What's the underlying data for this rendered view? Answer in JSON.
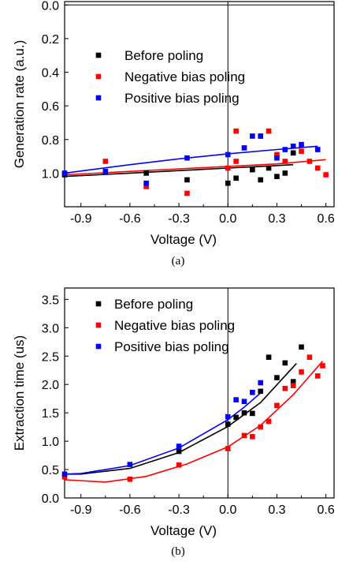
{
  "chart_data": [
    {
      "type": "scatter",
      "panel_label": "(a)",
      "xlabel": "Voltage (V)",
      "ylabel": "Generation rate (a.u.)",
      "xlim": [
        -1.0,
        0.65
      ],
      "ylim": [
        1.2,
        -0.02
      ],
      "y_axis_inverted": true,
      "x_ticks": [
        "-0.9",
        "-0.6",
        "-0.3",
        "0.0",
        "0.3",
        "0.6"
      ],
      "x_tick_values": [
        -0.9,
        -0.6,
        -0.3,
        0.0,
        0.3,
        0.6
      ],
      "y_ticks": [
        "0.0",
        "0.2",
        "0.4",
        "0.6",
        "0.8",
        "1.0"
      ],
      "y_tick_values": [
        0.0,
        0.2,
        0.4,
        0.6,
        0.8,
        1.0
      ],
      "grid": false,
      "legend_position": "top-center",
      "reference_lines": {
        "x": 0.0,
        "y": 0.0
      },
      "series": [
        {
          "name": "Before poling",
          "color": "#000000",
          "x": [
            -1.0,
            -0.5,
            -0.25,
            0.0,
            0.05,
            0.15,
            0.2,
            0.25,
            0.3,
            0.35,
            0.4
          ],
          "y": [
            1.01,
            1.0,
            1.04,
            1.06,
            1.03,
            0.98,
            1.04,
            0.97,
            1.02,
            1.0,
            0.88
          ],
          "fit": {
            "x": [
              -1.0,
              -0.6,
              -0.3,
              0.0,
              0.2,
              0.4
            ],
            "y": [
              1.02,
              1.0,
              0.985,
              0.97,
              0.96,
              0.95
            ]
          }
        },
        {
          "name": "Negative bias poling",
          "color": "#ff0000",
          "x": [
            -0.75,
            -0.5,
            -0.25,
            0.0,
            0.05,
            0.05,
            0.2,
            0.25,
            0.3,
            0.35,
            0.45,
            0.5,
            0.55,
            0.6
          ],
          "y": [
            0.93,
            1.08,
            1.12,
            0.97,
            0.75,
            0.93,
            0.78,
            0.75,
            0.89,
            0.93,
            0.87,
            0.93,
            0.97,
            1.01
          ],
          "fit": {
            "x": [
              -1.0,
              -0.6,
              -0.3,
              0.0,
              0.3,
              0.6
            ],
            "y": [
              1.01,
              0.99,
              0.975,
              0.96,
              0.945,
              0.92
            ]
          }
        },
        {
          "name": "Positive bias poling",
          "color": "#0000ff",
          "x": [
            -1.0,
            -0.75,
            -0.5,
            -0.25,
            0.0,
            0.1,
            0.15,
            0.2,
            0.3,
            0.35,
            0.4,
            0.45,
            0.55
          ],
          "y": [
            1.0,
            0.99,
            1.06,
            0.91,
            0.89,
            0.85,
            0.78,
            0.78,
            0.91,
            0.86,
            0.84,
            0.83,
            0.86
          ],
          "fit": {
            "x": [
              -1.0,
              -0.6,
              -0.3,
              0.0,
              0.3,
              0.55
            ],
            "y": [
              1.0,
              0.95,
              0.915,
              0.885,
              0.86,
              0.84
            ]
          }
        }
      ]
    },
    {
      "type": "scatter",
      "panel_label": "(b)",
      "xlabel": "Voltage (V)",
      "ylabel": "Extraction time (us)",
      "xlim": [
        -1.0,
        0.65
      ],
      "ylim": [
        0.0,
        3.7
      ],
      "x_ticks": [
        "-0.9",
        "-0.6",
        "-0.3",
        "0.0",
        "0.3",
        "0.6"
      ],
      "x_tick_values": [
        -0.9,
        -0.6,
        -0.3,
        0.0,
        0.3,
        0.6
      ],
      "y_ticks": [
        "0.0",
        "0.5",
        "1.0",
        "1.5",
        "2.0",
        "2.5",
        "3.0",
        "3.5"
      ],
      "y_tick_values": [
        0.0,
        0.5,
        1.0,
        1.5,
        2.0,
        2.5,
        3.0,
        3.5
      ],
      "grid": false,
      "legend_position": "top-center",
      "reference_lines": {
        "x": 0.0
      },
      "series": [
        {
          "name": "Before poling",
          "color": "#000000",
          "x": [
            -0.3,
            0.0,
            0.05,
            0.1,
            0.15,
            0.2,
            0.25,
            0.3,
            0.35,
            0.4,
            0.45
          ],
          "y": [
            0.82,
            1.3,
            1.42,
            1.5,
            1.49,
            1.88,
            2.48,
            2.12,
            2.38,
            2.05,
            2.66
          ],
          "fit": {
            "x": [
              -1.0,
              -0.9,
              -0.6,
              -0.3,
              0.0,
              0.2,
              0.42
            ],
            "y": [
              0.42,
              0.42,
              0.52,
              0.8,
              1.26,
              1.68,
              2.37
            ]
          }
        },
        {
          "name": "Negative bias poling",
          "color": "#ff0000",
          "x": [
            -1.0,
            -0.6,
            -0.3,
            0.0,
            0.1,
            0.15,
            0.2,
            0.25,
            0.3,
            0.35,
            0.4,
            0.45,
            0.5,
            0.55,
            0.58
          ],
          "y": [
            0.37,
            0.33,
            0.58,
            0.87,
            1.1,
            1.08,
            1.25,
            1.35,
            1.63,
            1.93,
            1.98,
            2.22,
            2.48,
            2.15,
            2.33
          ],
          "fit": {
            "x": [
              -1.0,
              -0.75,
              -0.5,
              -0.25,
              0.0,
              0.2,
              0.4,
              0.58
            ],
            "y": [
              0.32,
              0.28,
              0.38,
              0.6,
              0.9,
              1.28,
              1.82,
              2.41
            ]
          }
        },
        {
          "name": "Positive bias poling",
          "color": "#0000ff",
          "x": [
            -1.0,
            -0.6,
            -0.3,
            0.0,
            0.05,
            0.1,
            0.15,
            0.2
          ],
          "y": [
            0.42,
            0.59,
            0.91,
            1.43,
            1.73,
            1.7,
            1.86,
            2.03
          ],
          "fit": {
            "x": [
              -1.0,
              -0.9,
              -0.6,
              -0.3,
              0.0,
              0.1,
              0.2
            ],
            "y": [
              0.42,
              0.43,
              0.57,
              0.88,
              1.38,
              1.6,
              1.85
            ]
          }
        }
      ]
    }
  ]
}
